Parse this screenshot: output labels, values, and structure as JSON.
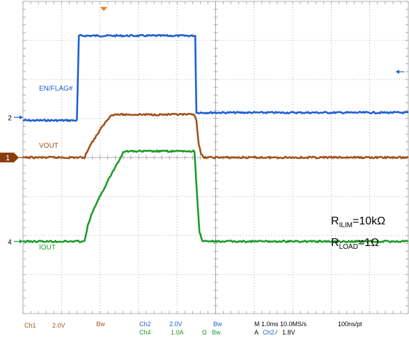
{
  "chart_data": {
    "type": "line",
    "x_unit": "div",
    "xlim": [
      0,
      10
    ],
    "ylim": [
      -4,
      4
    ],
    "series": [
      {
        "name": "EN/FLAG#",
        "channel": "2",
        "color": "#1f5fd0",
        "points": [
          [
            0,
            0.95
          ],
          [
            1.4,
            0.95
          ],
          [
            1.45,
            3.12
          ],
          [
            4.47,
            3.12
          ],
          [
            4.5,
            1.15
          ],
          [
            10,
            1.15
          ]
        ]
      },
      {
        "name": "VOUT",
        "channel": "1",
        "color": "#a0521a",
        "points": [
          [
            0,
            0
          ],
          [
            1.6,
            0
          ],
          [
            1.72,
            0.28
          ],
          [
            1.9,
            0.55
          ],
          [
            2.1,
            0.85
          ],
          [
            2.3,
            1.1
          ],
          [
            4.45,
            1.1
          ],
          [
            4.5,
            0.95
          ],
          [
            4.56,
            0.35
          ],
          [
            4.62,
            0.08
          ],
          [
            4.7,
            0
          ],
          [
            10,
            0
          ]
        ]
      },
      {
        "name": "IOUT",
        "channel": "4",
        "color": "#1e9a2a",
        "points": [
          [
            0,
            -2.15
          ],
          [
            1.6,
            -2.15
          ],
          [
            1.68,
            -1.75
          ],
          [
            1.8,
            -1.4
          ],
          [
            2.2,
            -0.6
          ],
          [
            2.58,
            0.1
          ],
          [
            2.62,
            0.16
          ],
          [
            4.45,
            0.16
          ],
          [
            4.52,
            -1.0
          ],
          [
            4.58,
            -1.9
          ],
          [
            4.65,
            -2.15
          ],
          [
            10,
            -2.15
          ]
        ]
      }
    ],
    "markers": [
      {
        "label": "1",
        "y": 0,
        "filled": true
      },
      {
        "label": "2",
        "y": 1.03,
        "filled": false
      },
      {
        "label": "4",
        "y": -2.15,
        "filled": false
      }
    ],
    "annotations": {
      "r1_main": "R",
      "r1_sub": "ILIM",
      "r1_rest": "=10kΩ",
      "r2_main": "R",
      "r2_sub": "LOAD",
      "r2_rest": "=1Ω"
    },
    "grid": true
  },
  "status_bar": {
    "ch1": "Ch1",
    "ch1_scale": "2.0V",
    "ch1_bw": "Bw",
    "ch2": "Ch2",
    "ch2_scale": "2.0V",
    "ch2_bw": "Bw",
    "ch4": "Ch4",
    "ch4_scale": "1.0A",
    "ch4_ohm": "Ω",
    "ch4_bw": "Bw",
    "timebase": "M 1.0ms 10.0MS/s",
    "resolution": "100ns/pt",
    "trigger_prefix": "A",
    "trigger_source": "Ch2",
    "trigger_slope": "∕",
    "trigger_level": "1.8V"
  }
}
